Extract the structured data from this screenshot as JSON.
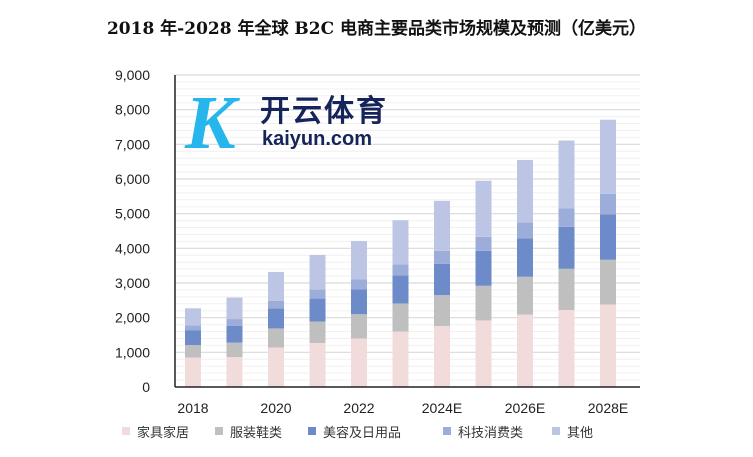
{
  "chart_data": {
    "type": "bar",
    "stacked": true,
    "title": "2018 年-2028 年全球 B2C 电商主要品类市场规模及预测（亿美元）",
    "categories": [
      "2018",
      "2019",
      "2020",
      "2021",
      "2022",
      "2023",
      "2024E",
      "2025E",
      "2026E",
      "2027E",
      "2028E"
    ],
    "tick_labels": [
      "2018",
      "",
      "2020",
      "",
      "2022",
      "",
      "2024E",
      "",
      "2026E",
      "",
      "2028E"
    ],
    "series": [
      {
        "name": "家具家居",
        "color": "#f2dcdb",
        "values": [
          850,
          860,
          1140,
          1270,
          1400,
          1600,
          1760,
          1920,
          2090,
          2220,
          2380
        ]
      },
      {
        "name": "服装鞋类",
        "color": "#bfbfbf",
        "values": [
          360,
          420,
          550,
          620,
          700,
          810,
          890,
          1000,
          1090,
          1190,
          1290
        ]
      },
      {
        "name": "美容及日用品",
        "color": "#6d8ac9",
        "values": [
          430,
          480,
          580,
          660,
          720,
          810,
          900,
          1010,
          1110,
          1210,
          1310
        ]
      },
      {
        "name": "科技消费类",
        "color": "#9dadd9",
        "values": [
          140,
          200,
          220,
          260,
          290,
          320,
          380,
          400,
          460,
          530,
          590
        ]
      },
      {
        "name": "其他",
        "color": "#bcc6e4",
        "values": [
          490,
          620,
          830,
          1000,
          1100,
          1270,
          1440,
          1620,
          1800,
          1960,
          2140
        ]
      }
    ],
    "ylim": [
      0,
      9000
    ],
    "yticks": [
      0,
      1000,
      2000,
      3000,
      4000,
      5000,
      6000,
      7000,
      8000,
      9000
    ],
    "ytick_labels": [
      "0",
      "1,000",
      "2,000",
      "3,000",
      "4,000",
      "5,000",
      "6,000",
      "7,000",
      "8,000",
      "9,000"
    ],
    "xlabel": "",
    "ylabel": "",
    "grid": true,
    "legend_position": "bottom"
  },
  "watermark": {
    "cn": "开云体育",
    "en": "kaiyun.com",
    "mark": "K"
  }
}
